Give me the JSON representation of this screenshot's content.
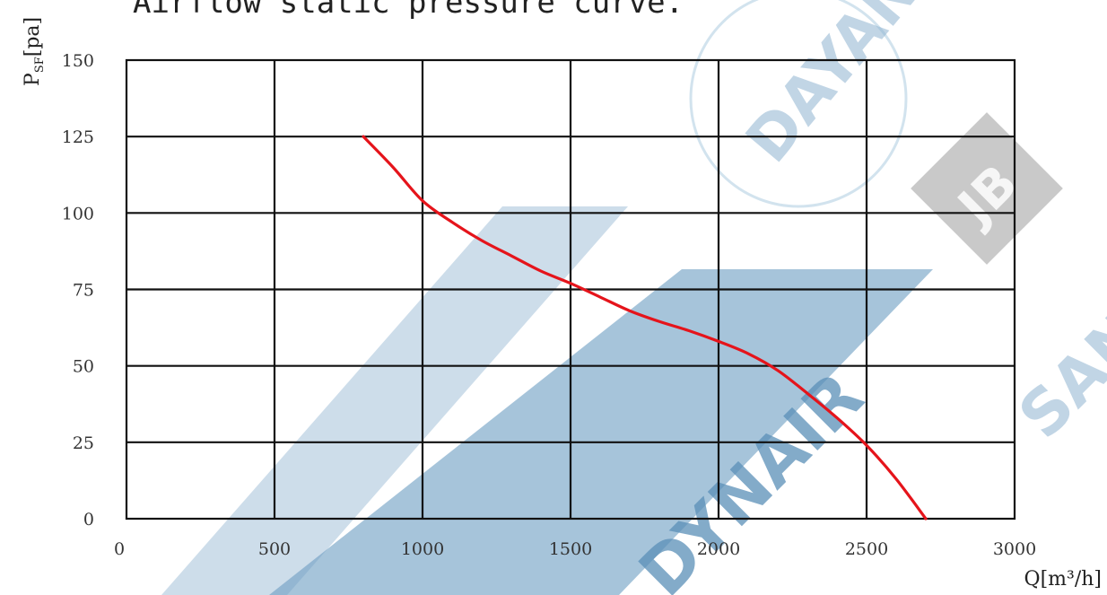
{
  "chart_data": {
    "type": "line",
    "title": "Airflow static pressure curve.",
    "xlabel": "Q[m³/h]",
    "ylabel": "P_SF[pa]",
    "ylabel_main": "P",
    "ylabel_sub": "SF",
    "ylabel_unit": "[pa]",
    "xlim": [
      0,
      3000
    ],
    "ylim": [
      0,
      150
    ],
    "xticks": [
      0,
      500,
      1000,
      1500,
      2000,
      2500,
      3000
    ],
    "yticks": [
      0,
      25,
      50,
      75,
      100,
      125,
      150
    ],
    "grid": true,
    "series": [
      {
        "color": "#e5141b",
        "x": [
          800,
          900,
          1000,
          1100,
          1200,
          1300,
          1400,
          1500,
          1600,
          1700,
          1800,
          1900,
          2000,
          2100,
          2200,
          2300,
          2400,
          2500,
          2600,
          2700
        ],
        "y": [
          125,
          115,
          104,
          97,
          91,
          86,
          81,
          77,
          72.5,
          68,
          64.5,
          61.5,
          58,
          54,
          48.5,
          41,
          33,
          24,
          13,
          0
        ]
      }
    ]
  },
  "watermarks": [
    "DAYAN",
    "JB",
    "DYNAIR",
    "SAN"
  ]
}
